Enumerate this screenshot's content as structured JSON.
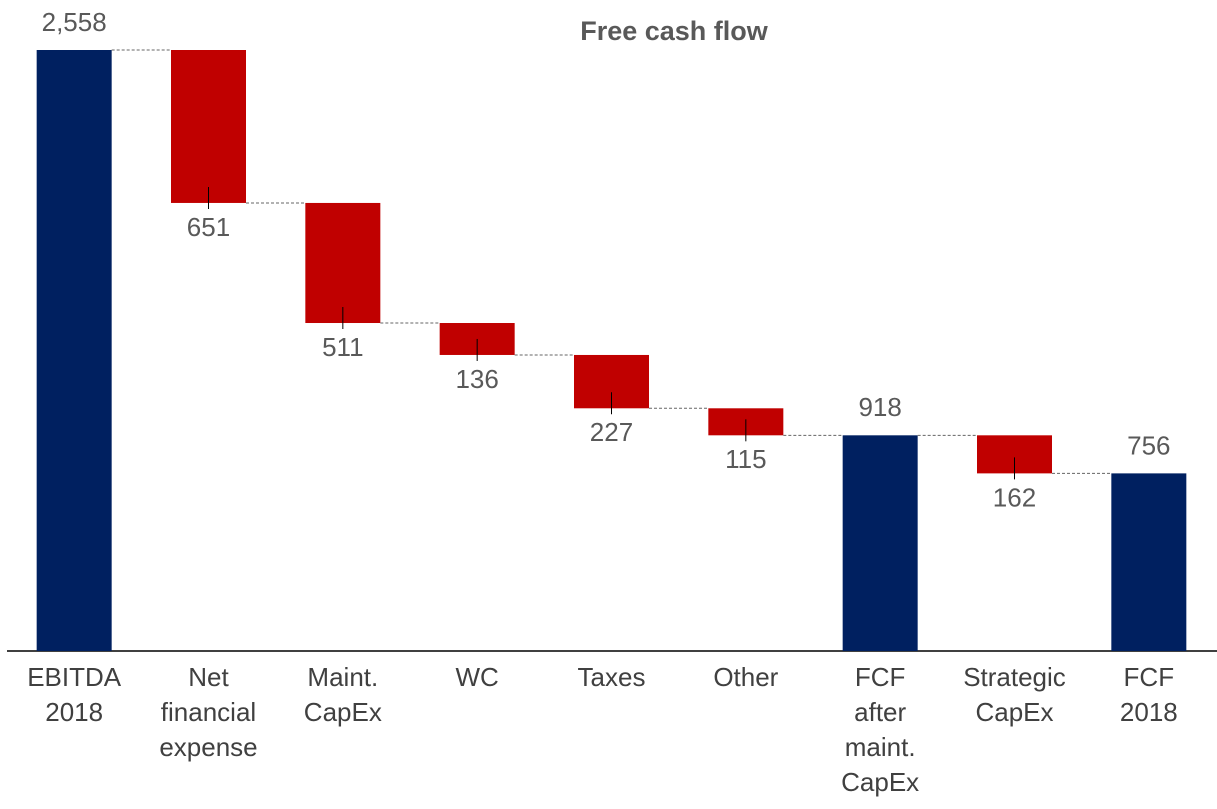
{
  "chart_data": {
    "type": "waterfall",
    "title": "Free cash flow",
    "categories": [
      "EBITDA 2018",
      "Net financial expense",
      "Maint. CapEx",
      "WC",
      "Taxes",
      "Other",
      "FCF after maint. CapEx",
      "Strategic CapEx",
      "FCF 2018"
    ],
    "measure": [
      "total",
      "decrease",
      "decrease",
      "decrease",
      "decrease",
      "decrease",
      "total",
      "decrease",
      "total"
    ],
    "values": [
      2558,
      651,
      511,
      136,
      227,
      115,
      918,
      162,
      756
    ],
    "value_labels": [
      "2,558",
      "651",
      "511",
      "136",
      "227",
      "115",
      "918",
      "162",
      "756"
    ],
    "colors": {
      "total": "#002060",
      "decrease": "#c00000"
    },
    "ylim": [
      0,
      2558
    ]
  }
}
